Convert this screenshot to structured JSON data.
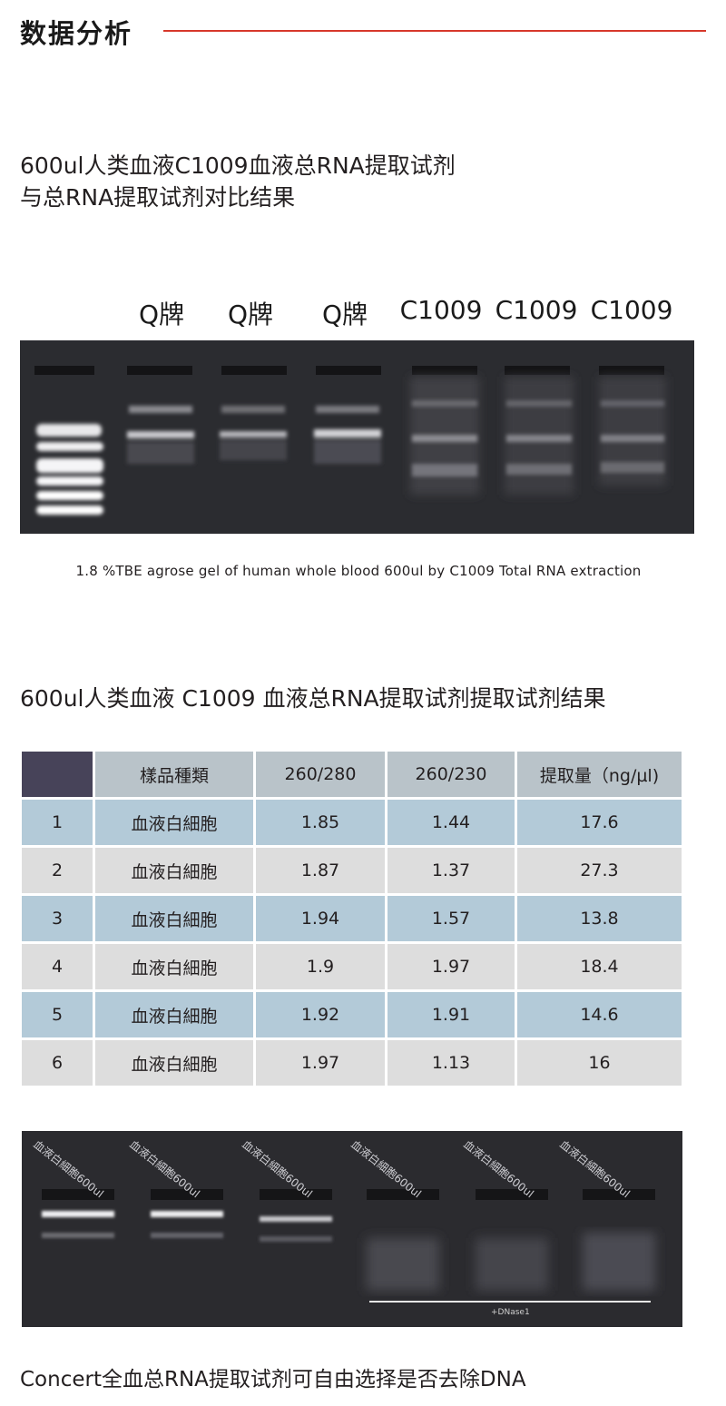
{
  "header": {
    "title": "数据分析"
  },
  "section1": {
    "title_line1": "600ul人类血液C1009血液总RNA提取试剂",
    "title_line2": "与总RNA提取试剂对比结果",
    "lane_labels": [
      "Q牌",
      "Q牌",
      "Q牌",
      "C1009",
      "C1009",
      "C1009"
    ],
    "caption": "1.8 %TBE agrose gel of human whole blood 600ul by C1009 Total RNA extraction"
  },
  "section2": {
    "title": "600ul人类血液 C1009 血液总RNA提取试剂提取试剂结果",
    "table": {
      "headers": [
        "",
        "樣品種類",
        "260/280",
        "260/230",
        "提取量（ng/µl)"
      ],
      "rows": [
        [
          "1",
          "血液白細胞",
          "1.85",
          "1.44",
          "17.6"
        ],
        [
          "2",
          "血液白細胞",
          "1.87",
          "1.37",
          "27.3"
        ],
        [
          "3",
          "血液白細胞",
          "1.94",
          "1.57",
          "13.8"
        ],
        [
          "4",
          "血液白細胞",
          "1.9",
          "1.97",
          "18.4"
        ],
        [
          "5",
          "血液白細胞",
          "1.92",
          "1.91",
          "14.6"
        ],
        [
          "6",
          "血液白細胞",
          "1.97",
          "1.13",
          "16"
        ]
      ]
    },
    "gel_lane_labels": [
      "血液白細胞600ul",
      "血液白細胞600ul",
      "血液白細胞600ul",
      "血液白細胞600ul",
      "血液白細胞600ul",
      "血液白細胞600ul"
    ],
    "dnase_label": "+DNase1",
    "bottom_caption": "Concert全血总RNA提取试剂可自由选择是否去除DNA"
  },
  "colors": {
    "accent_rule": "#d7382b",
    "table_header": "#b9c3c9",
    "table_corner": "#474359",
    "row_blue": "#b3cad8",
    "row_gray": "#dddddd",
    "gel_background": "#2b2c30"
  }
}
